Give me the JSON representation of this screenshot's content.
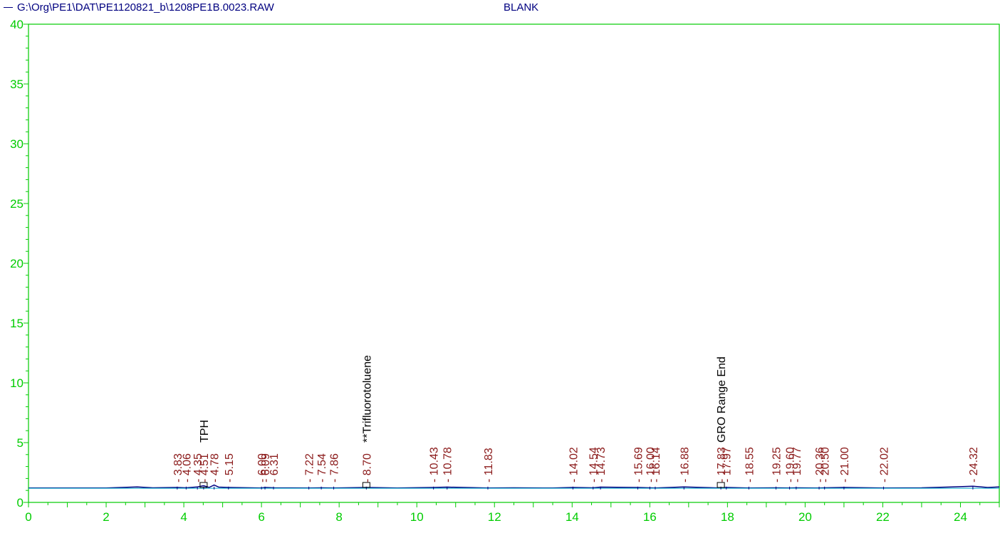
{
  "header": {
    "file_path": "G:\\Org\\PE1\\DAT\\PE1120821_b\\1208PE1B.0023.RAW",
    "sample_name": "BLANK"
  },
  "colors": {
    "axis": "#00cc00",
    "trace": "#000080",
    "baseline": "#00aacc",
    "peak_label": "#8b1a1a",
    "component_label": "#000000",
    "header_text": "#000080"
  },
  "chart_data": {
    "type": "line",
    "title": "",
    "xlabel": "",
    "ylabel": "",
    "xlim": [
      0,
      25
    ],
    "ylim": [
      0,
      40
    ],
    "x_ticks": [
      0,
      2,
      4,
      6,
      8,
      10,
      12,
      14,
      16,
      18,
      20,
      22,
      24
    ],
    "y_ticks": [
      0,
      5,
      10,
      15,
      20,
      25,
      30,
      35,
      40
    ],
    "grid": false,
    "series": [
      {
        "name": "G:\\Org\\PE1\\DAT\\PE1120821_b\\1208PE1B.0023.RAW",
        "x": [
          0,
          2,
          2.4,
          2.8,
          3.2,
          3.83,
          4.06,
          4.35,
          4.51,
          4.65,
          4.78,
          4.9,
          5.15,
          6.0,
          6.09,
          6.31,
          7.22,
          7.54,
          7.86,
          8.7,
          9.5,
          10.43,
          10.78,
          11.83,
          12.5,
          13.5,
          14.02,
          14.54,
          14.73,
          15.69,
          16.0,
          16.14,
          16.88,
          17.83,
          17.97,
          18.55,
          19.25,
          19.6,
          19.77,
          20.36,
          20.5,
          21.0,
          22.02,
          23.0,
          23.8,
          24.32,
          24.7,
          25.0
        ],
        "y": [
          1.2,
          1.2,
          1.25,
          1.3,
          1.22,
          1.25,
          1.22,
          1.3,
          1.4,
          1.25,
          1.45,
          1.28,
          1.25,
          1.2,
          1.25,
          1.22,
          1.2,
          1.22,
          1.2,
          1.25,
          1.2,
          1.25,
          1.28,
          1.2,
          1.22,
          1.2,
          1.25,
          1.22,
          1.28,
          1.25,
          1.22,
          1.2,
          1.3,
          1.2,
          1.25,
          1.2,
          1.22,
          1.2,
          1.22,
          1.2,
          1.22,
          1.25,
          1.2,
          1.22,
          1.3,
          1.35,
          1.25,
          1.3
        ]
      }
    ],
    "peaks": [
      "3.83",
      "4.06",
      "4.35",
      "4.51",
      "4.78",
      "5.15",
      "6.00",
      "6.09",
      "6.31",
      "7.22",
      "7.54",
      "7.86",
      "8.70",
      "10.43",
      "10.78",
      "11.83",
      "14.02",
      "14.54",
      "14.73",
      "15.69",
      "16.00",
      "16.14",
      "16.88",
      "17.83",
      "17.97",
      "18.55",
      "19.25",
      "19.60",
      "19.77",
      "20.36",
      "20.50",
      "21.00",
      "22.02",
      "24.32"
    ],
    "components": [
      {
        "name": "TPH",
        "rt": 4.51
      },
      {
        "name": "**Trifluorotoluene",
        "rt": 8.7
      },
      {
        "name": "GRO Range End",
        "rt": 17.83
      }
    ]
  }
}
